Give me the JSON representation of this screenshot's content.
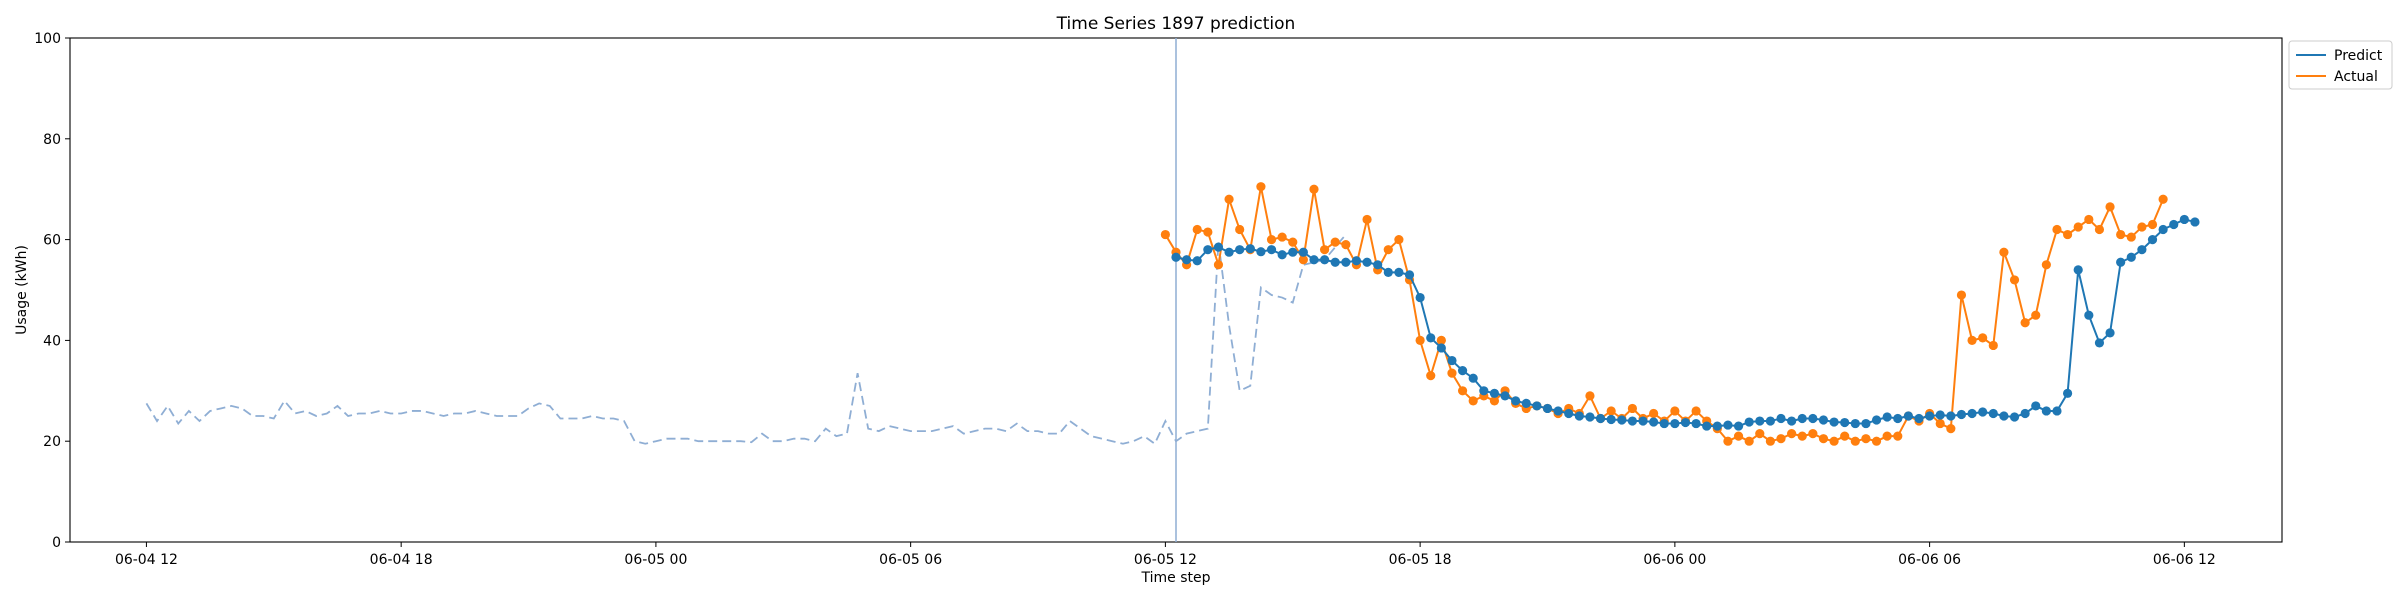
{
  "chart_data": {
    "type": "line",
    "title": "Time Series 1897 prediction",
    "xlabel": "Time step",
    "ylabel": "Usage (kWh)",
    "ylim": [
      0,
      100
    ],
    "xlim_hours": [
      -1.8,
      50.3
    ],
    "yticks": [
      0,
      20,
      40,
      60,
      80,
      100
    ],
    "xticks": [
      {
        "label": "06-04 12",
        "hours": 0
      },
      {
        "label": "06-04 18",
        "hours": 6
      },
      {
        "label": "06-05 00",
        "hours": 12
      },
      {
        "label": "06-05 06",
        "hours": 18
      },
      {
        "label": "06-05 12",
        "hours": 24
      },
      {
        "label": "06-05 18",
        "hours": 30
      },
      {
        "label": "06-06 00",
        "hours": 36
      },
      {
        "label": "06-06 06",
        "hours": 42
      },
      {
        "label": "06-06 12",
        "hours": 48
      }
    ],
    "forecast_start_hours": 24.25,
    "legend": {
      "position": "top-right-outside",
      "entries": [
        "Predict",
        "Actual"
      ]
    },
    "colors": {
      "predict": "#1f77b4",
      "actual": "#ff7f0e",
      "history": "#8faed4",
      "divider": "#8faed4"
    },
    "series": [
      {
        "name": "History",
        "style": "dashed",
        "x_start_hours": 0,
        "x_step_hours": 0.25,
        "values": [
          27.5,
          24.0,
          27.0,
          23.5,
          26.0,
          24.0,
          26.0,
          26.5,
          27.0,
          26.5,
          25.0,
          25.0,
          24.5,
          28.0,
          25.5,
          26.0,
          25.0,
          25.5,
          27.0,
          25.0,
          25.5,
          25.5,
          26.0,
          25.5,
          25.5,
          26.0,
          26.0,
          25.5,
          25.0,
          25.5,
          25.5,
          26.0,
          25.5,
          25.0,
          25.0,
          25.0,
          26.5,
          27.5,
          27.0,
          24.5,
          24.5,
          24.5,
          25.0,
          24.5,
          24.5,
          24.0,
          20.0,
          19.5,
          20.0,
          20.5,
          20.5,
          20.5,
          20.0,
          20.0,
          20.0,
          20.0,
          20.0,
          19.8,
          21.5,
          20.0,
          20.0,
          20.5,
          20.5,
          20.0,
          22.5,
          21.0,
          21.5,
          33.5,
          22.5,
          22.0,
          23.0,
          22.5,
          22.0,
          22.0,
          22.0,
          22.5,
          23.0,
          21.5,
          22.0,
          22.5,
          22.5,
          22.0,
          23.5,
          22.0,
          22.0,
          21.5,
          21.5,
          24.0,
          22.5,
          21.0,
          20.5,
          20.0,
          19.5,
          20.0,
          21.0,
          19.5,
          24.0,
          20.0,
          21.5,
          22.0,
          22.5,
          59.5,
          43.0,
          30.0,
          31.0,
          50.5,
          49.0,
          48.5,
          47.5,
          55.0,
          55.5,
          56.0,
          58.5,
          61.0
        ]
      },
      {
        "name": "Predict",
        "style": "solid-markers",
        "x_start_hours": 24.25,
        "x_step_hours": 0.25,
        "values": [
          56.5,
          56.0,
          55.8,
          58.0,
          58.5,
          57.5,
          58.0,
          58.2,
          57.6,
          58.0,
          57.0,
          57.5,
          57.5,
          56.0,
          56.0,
          55.5,
          55.5,
          55.8,
          55.5,
          55.0,
          53.5,
          53.5,
          53.0,
          48.5,
          40.5,
          38.5,
          36.0,
          34.0,
          32.5,
          30.0,
          29.5,
          29.0,
          28.0,
          27.5,
          27.0,
          26.5,
          26.0,
          25.5,
          25.0,
          24.8,
          24.5,
          24.3,
          24.2,
          24.0,
          24.0,
          23.8,
          23.5,
          23.5,
          23.7,
          23.5,
          23.0,
          23.0,
          23.2,
          23.0,
          23.8,
          24.0,
          24.0,
          24.5,
          24.0,
          24.5,
          24.5,
          24.2,
          23.8,
          23.7,
          23.5,
          23.5,
          24.2,
          24.8,
          24.5,
          25.0,
          24.5,
          25.0,
          25.2,
          25.0,
          25.3,
          25.5,
          25.8,
          25.5,
          25.0,
          24.8,
          25.5,
          27.0,
          26.0,
          26.0,
          29.5,
          54.0,
          45.0,
          39.5,
          41.5,
          55.5,
          56.5,
          58.0,
          60.0,
          62.0,
          63.0,
          64.0,
          63.5
        ]
      },
      {
        "name": "Actual",
        "style": "solid-markers",
        "x_start_hours": 24.0,
        "x_step_hours": 0.25,
        "values": [
          61.0,
          57.5,
          55.0,
          62.0,
          61.5,
          55.0,
          68.0,
          62.0,
          58.0,
          70.5,
          60.0,
          60.5,
          59.5,
          56.0,
          70.0,
          58.0,
          59.5,
          59.0,
          55.0,
          64.0,
          54.0,
          58.0,
          60.0,
          52.0,
          40.0,
          33.0,
          40.0,
          33.5,
          30.0,
          28.0,
          29.0,
          28.0,
          30.0,
          27.5,
          26.5,
          27.0,
          26.5,
          25.5,
          26.5,
          25.5,
          29.0,
          24.5,
          26.0,
          24.5,
          26.5,
          24.5,
          25.5,
          24.0,
          26.0,
          24.0,
          26.0,
          24.0,
          22.5,
          20.0,
          21.0,
          20.0,
          21.5,
          20.0,
          20.5,
          21.5,
          21.0,
          21.5,
          20.5,
          20.0,
          21.0,
          20.0,
          20.5,
          20.0,
          21.0,
          21.0,
          25.0,
          24.0,
          25.5,
          23.5,
          22.5,
          49.0,
          40.0,
          40.5,
          39.0,
          57.5,
          52.0,
          43.5,
          45.0,
          55.0,
          62.0,
          61.0,
          62.5,
          64.0,
          62.0,
          66.5,
          61.0,
          60.5,
          62.5,
          63.0,
          68.0
        ]
      }
    ]
  }
}
